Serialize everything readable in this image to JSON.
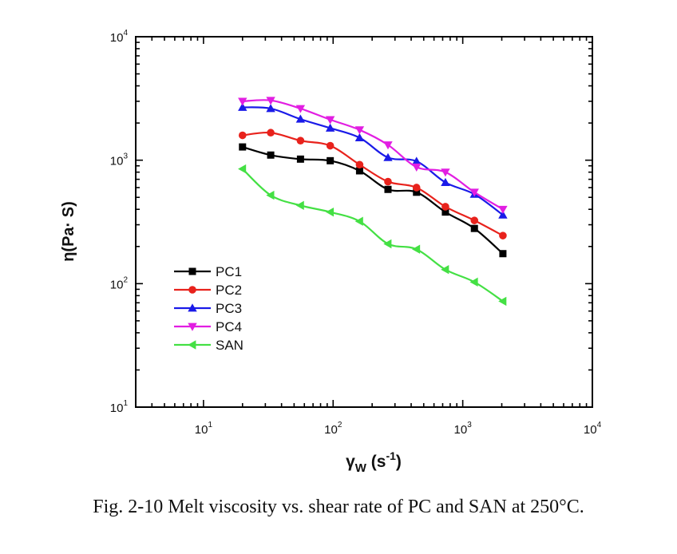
{
  "caption": "Fig. 2-10 Melt viscosity vs. shear rate of PC and SAN at 250°C.",
  "chart_data": {
    "type": "line",
    "xscale": "log",
    "yscale": "log",
    "xlim": [
      3,
      10000
    ],
    "ylim": [
      10,
      10000
    ],
    "xlabel": {
      "main": "γ",
      "sub": "W",
      "unit_open": " (s",
      "sup": "-1",
      "unit_close": ")"
    },
    "ylabel": "η(Pa· S)",
    "x_ticks": [
      {
        "value": 10,
        "base": "10",
        "exp": "1"
      },
      {
        "value": 100,
        "base": "10",
        "exp": "2"
      },
      {
        "value": 1000,
        "base": "10",
        "exp": "3"
      },
      {
        "value": 10000,
        "base": "10",
        "exp": "4"
      }
    ],
    "y_ticks": [
      {
        "value": 10,
        "base": "10",
        "exp": "1"
      },
      {
        "value": 100,
        "base": "10",
        "exp": "2"
      },
      {
        "value": 1000,
        "base": "10",
        "exp": "3"
      },
      {
        "value": 10000,
        "base": "10",
        "exp": "4"
      }
    ],
    "grid": false,
    "legend_position": "lower-left",
    "x": [
      20,
      33,
      56,
      95,
      160,
      265,
      440,
      735,
      1230,
      2040
    ],
    "series": [
      {
        "name": "PC1",
        "color": "#000000",
        "marker": "square",
        "values": [
          1280,
          1100,
          1020,
          990,
          820,
          580,
          550,
          380,
          280,
          175
        ]
      },
      {
        "name": "PC2",
        "color": "#e8221c",
        "marker": "circle",
        "values": [
          1590,
          1670,
          1440,
          1310,
          920,
          670,
          600,
          420,
          325,
          245
        ]
      },
      {
        "name": "PC3",
        "color": "#1a1ae8",
        "marker": "triangle-up",
        "values": [
          2680,
          2620,
          2150,
          1820,
          1520,
          1050,
          980,
          660,
          530,
          360
        ]
      },
      {
        "name": "PC4",
        "color": "#e21ee2",
        "marker": "triangle-down",
        "values": [
          3000,
          3050,
          2620,
          2130,
          1760,
          1330,
          880,
          800,
          550,
          400
        ]
      },
      {
        "name": "SAN",
        "color": "#44e044",
        "marker": "triangle-left",
        "values": [
          850,
          520,
          430,
          380,
          320,
          210,
          190,
          130,
          103,
          72
        ]
      }
    ]
  }
}
